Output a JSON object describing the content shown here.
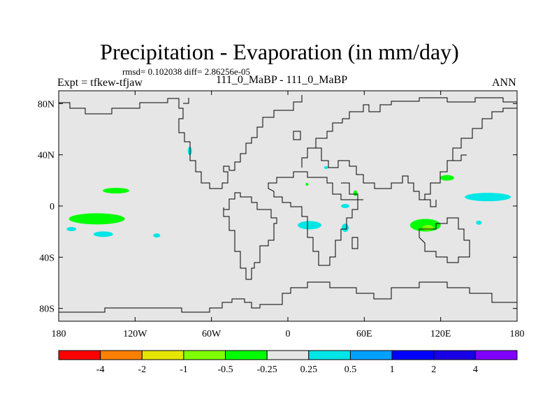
{
  "header": {
    "title": "Precipitation - Evaporation (in mm/day)",
    "subtitle": "rmsd= 0.102038 diff= 2.86256e-05",
    "left_label": "Expt = tfkew-tfjaw",
    "center_label": "111_0_MaBP - 111_0_MaBP",
    "right_label": "ANN"
  },
  "chart_data": {
    "type": "heatmap",
    "x_ticks": [
      "180",
      "120W",
      "60W",
      "0",
      "60E",
      "120E",
      "180"
    ],
    "y_ticks": [
      "80N",
      "40N",
      "0",
      "40S",
      "80S"
    ],
    "xlim": [
      -180,
      180
    ],
    "ylim": [
      -90,
      90
    ],
    "background_value_range": [
      -0.25,
      0.25
    ],
    "colorbar": {
      "colors": [
        "#ff0000",
        "#ff8000",
        "#e6e600",
        "#80ff00",
        "#00ff00",
        "#e6e6e6",
        "#00e6e6",
        "#00a0ff",
        "#0000ff",
        "#1a00e6",
        "#8000ff"
      ],
      "labels": [
        "-4",
        "-2",
        "-1",
        "-0.5",
        "-0.25",
        "0.25",
        "0.5",
        "1",
        "2",
        "4"
      ]
    },
    "features": [
      {
        "name": "green-patch-1",
        "value": -0.3,
        "lon": -135,
        "lat": 12
      },
      {
        "name": "green-patch-2",
        "value": -0.3,
        "lon": -150,
        "lat": -10
      },
      {
        "name": "green-patch-3",
        "value": -0.3,
        "lon": 108,
        "lat": -15
      },
      {
        "name": "green-patch-4",
        "value": -0.3,
        "lon": 125,
        "lat": 22
      },
      {
        "name": "green-patch-5",
        "value": -0.3,
        "lon": 53,
        "lat": 10
      },
      {
        "name": "green-patch-6",
        "value": -0.3,
        "lon": 15,
        "lat": 17
      },
      {
        "name": "lime-patch-1",
        "value": -0.6,
        "lon": 110,
        "lat": -17
      },
      {
        "name": "cyan-patch-1",
        "value": 0.3,
        "lon": -170,
        "lat": -18
      },
      {
        "name": "cyan-patch-2",
        "value": 0.3,
        "lon": -145,
        "lat": -22
      },
      {
        "name": "cyan-patch-3",
        "value": 0.3,
        "lon": -103,
        "lat": -23
      },
      {
        "name": "cyan-patch-4",
        "value": 0.3,
        "lon": 17,
        "lat": -15
      },
      {
        "name": "cyan-patch-5",
        "value": 0.3,
        "lon": 45,
        "lat": -17
      },
      {
        "name": "cyan-patch-6",
        "value": 0.3,
        "lon": 45,
        "lat": 0
      },
      {
        "name": "cyan-patch-7",
        "value": 0.3,
        "lon": 157,
        "lat": 7
      },
      {
        "name": "cyan-patch-8",
        "value": 0.3,
        "lon": 150,
        "lat": -13
      },
      {
        "name": "cyan-patch-9",
        "value": 0.3,
        "lon": -77,
        "lat": 43
      },
      {
        "name": "cyan-patch-10",
        "value": 0.3,
        "lon": 30,
        "lat": 30
      }
    ]
  }
}
